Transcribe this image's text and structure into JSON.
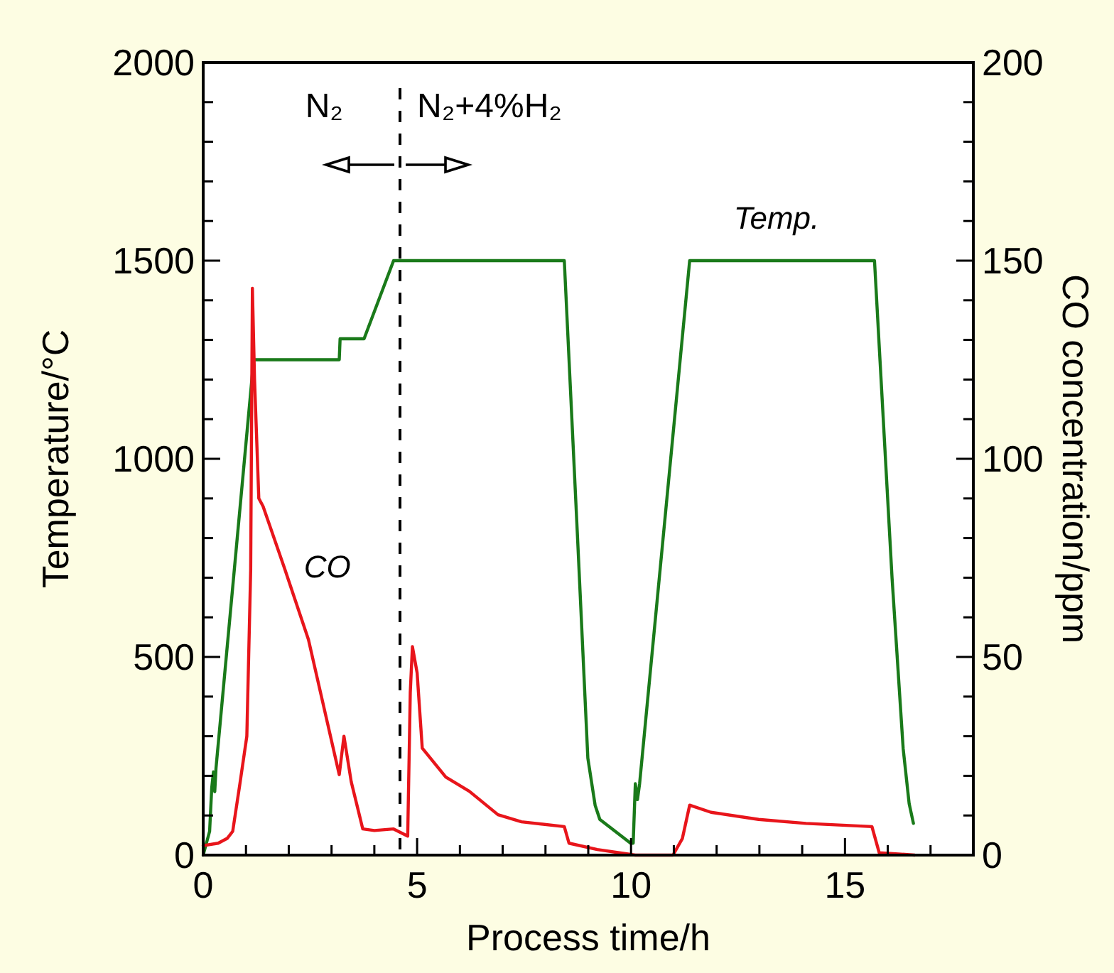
{
  "chart_data": {
    "type": "line",
    "xlabel": "Process time/h",
    "ylabel": "Temperature/°C",
    "y2label": "CO concentration/ppm",
    "annotations": [
      {
        "text": "N₂",
        "x": 4.6,
        "y": 1740
      },
      {
        "text": "N₂+4%H₂",
        "x": 4.6,
        "y": 1740
      }
    ],
    "xlim": [
      0,
      18
    ],
    "xticks": [
      0,
      {
        "value": 1,
        "label": null
      },
      {
        "value": 2,
        "label": null
      },
      {
        "value": 3,
        "label": null
      },
      {
        "value": 4,
        "label": null
      },
      5,
      {
        "value": 6,
        "label": null
      },
      {
        "value": 7,
        "label": null
      },
      {
        "value": 8,
        "label": null
      },
      {
        "value": 9,
        "label": null
      },
      10,
      {
        "value": 11,
        "label": null
      },
      {
        "value": 12,
        "label": null
      },
      {
        "value": 13,
        "label": null
      },
      {
        "value": 14,
        "label": null
      },
      15,
      {
        "value": 16,
        "label": null
      },
      {
        "value": 17,
        "label": null
      }
    ],
    "ylim": [
      0,
      2000
    ],
    "yticks": [
      0,
      {
        "value": 100,
        "label": null
      },
      {
        "value": 200,
        "label": null
      },
      {
        "value": 300,
        "label": null
      },
      {
        "value": 400,
        "label": null
      },
      500,
      {
        "value": 600,
        "label": null
      },
      {
        "value": 700,
        "label": null
      },
      {
        "value": 800,
        "label": null
      },
      {
        "value": 900,
        "label": null
      },
      1000,
      {
        "value": 1100,
        "label": null
      },
      {
        "value": 1200,
        "label": null
      },
      {
        "value": 1300,
        "label": null
      },
      {
        "value": 1400,
        "label": null
      },
      1500,
      {
        "value": 1600,
        "label": null
      },
      {
        "value": 1700,
        "label": null
      },
      {
        "value": 1800,
        "label": null
      },
      {
        "value": 1900,
        "label": null
      },
      2000
    ],
    "y2lim": [
      0,
      200
    ],
    "y2ticks": [
      0,
      {
        "value": 10,
        "label": null
      },
      {
        "value": 20,
        "label": null
      },
      {
        "value": 30,
        "label": null
      },
      {
        "value": 40,
        "label": null
      },
      50,
      {
        "value": 60,
        "label": null
      },
      {
        "value": 70,
        "label": null
      },
      {
        "value": 80,
        "label": null
      },
      {
        "value": 90,
        "label": null
      },
      100,
      {
        "value": 110,
        "label": null
      },
      {
        "value": 120,
        "label": null
      },
      {
        "value": 130,
        "label": null
      },
      {
        "value": 140,
        "label": null
      },
      150,
      {
        "value": 160,
        "label": null
      },
      {
        "value": 170,
        "label": null
      },
      {
        "value": 180,
        "label": null
      },
      {
        "value": 190,
        "label": null
      },
      200
    ],
    "ref_lines": [
      {
        "axis": "x",
        "value": 4.6,
        "line_style": "dashed",
        "color": "#000000"
      }
    ],
    "series": [
      {
        "name": "Temp.",
        "color": "#1a7a1a",
        "axis": "y",
        "x": [
          0,
          0.15,
          0.2,
          0.24,
          0.27,
          0.3,
          1.18,
          3.18,
          3.2,
          3.76,
          4.45,
          8.44,
          8.75,
          8.99,
          9.16,
          9.27,
          9.99,
          10.05,
          10.1,
          10.15,
          10.2,
          11.37,
          15.69,
          16.1,
          16.36,
          16.5,
          16.6
        ],
        "values": [
          0,
          60,
          170,
          210,
          160,
          220,
          1250,
          1250,
          1303,
          1303,
          1500,
          1500,
          800,
          245,
          126,
          90,
          30,
          30,
          180,
          140,
          180,
          1500,
          1500,
          700,
          269,
          130,
          80
        ]
      },
      {
        "name": "CO",
        "color": "#e8151b",
        "axis": "y2",
        "x": [
          0,
          0.35,
          0.56,
          0.69,
          0.85,
          1.02,
          1.11,
          1.15,
          1.2,
          1.3,
          1.4,
          1.9,
          2.46,
          3.18,
          3.29,
          3.46,
          3.73,
          4.0,
          4.45,
          4.78,
          4.84,
          4.89,
          5.0,
          5.12,
          5.67,
          6.22,
          6.89,
          7.44,
          8.44,
          8.55,
          9.21,
          10.1,
          10.98,
          11.2,
          11.37,
          11.87,
          12.98,
          14.09,
          15.63,
          15.8,
          16.63
        ],
        "values": [
          2.4,
          3,
          4.2,
          6,
          17.4,
          30,
          72,
          143,
          120,
          90,
          88,
          72.4,
          54.4,
          20.3,
          30,
          18.5,
          6.6,
          6.2,
          6.6,
          4.8,
          41,
          52.6,
          46,
          27,
          19.7,
          16.1,
          10.2,
          8.4,
          7.2,
          3,
          1.4,
          0,
          0,
          4.2,
          12.6,
          10.8,
          9,
          8,
          7.2,
          0.6,
          0
        ]
      }
    ]
  }
}
